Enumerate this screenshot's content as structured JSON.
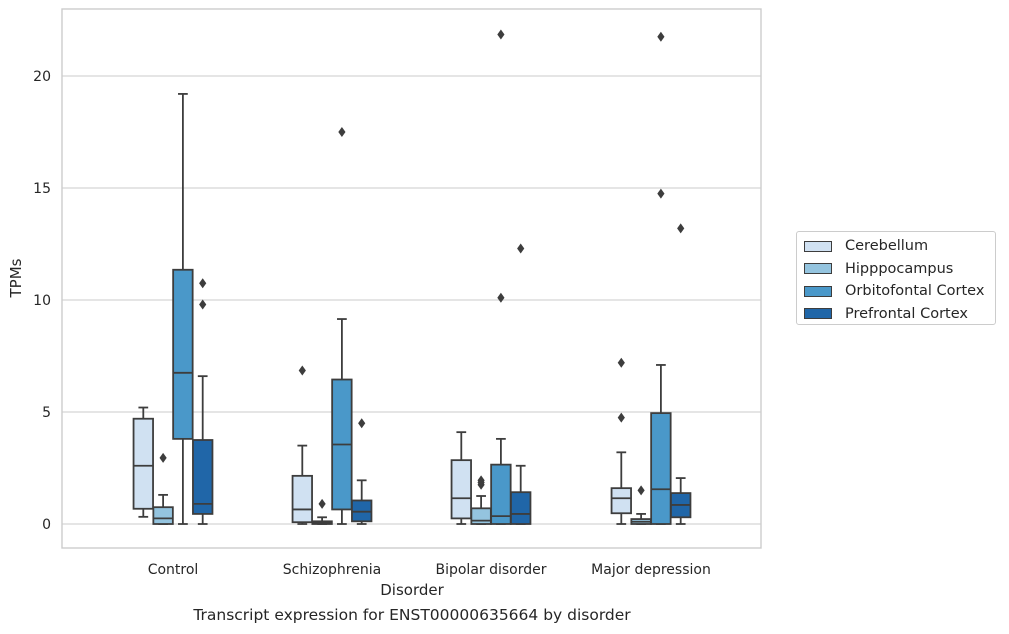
{
  "caption": "Transcript expression for ENST00000635664 by disorder",
  "chart_data": {
    "type": "box",
    "xlabel": "Disorder",
    "ylabel": "TPMs",
    "ylim": [
      -1.05,
      23.0
    ],
    "yticks": [
      0,
      5,
      10,
      15,
      20
    ],
    "grid": "horizontal",
    "legend_position": "right",
    "categories": [
      "Control",
      "Schizophrenia",
      "Bipolar disorder",
      "Major depression"
    ],
    "series": [
      {
        "name": "Cerebellum",
        "color": "#d0e1f2",
        "boxes": [
          {
            "whisker_low": 0.32,
            "q1": 0.68,
            "median": 2.6,
            "q3": 4.7,
            "whisker_high": 5.2,
            "outliers": []
          },
          {
            "whisker_low": 0.0,
            "q1": 0.08,
            "median": 0.65,
            "q3": 2.15,
            "whisker_high": 3.5,
            "outliers": [
              6.85
            ]
          },
          {
            "whisker_low": 0.0,
            "q1": 0.25,
            "median": 1.15,
            "q3": 2.85,
            "whisker_high": 4.1,
            "outliers": []
          },
          {
            "whisker_low": 0.0,
            "q1": 0.48,
            "median": 1.15,
            "q3": 1.6,
            "whisker_high": 3.2,
            "outliers": [
              4.75,
              7.2
            ]
          }
        ]
      },
      {
        "name": "Hipppocampus",
        "color": "#94c4df",
        "boxes": [
          {
            "whisker_low": 0.0,
            "q1": 0.0,
            "median": 0.25,
            "q3": 0.75,
            "whisker_high": 1.3,
            "outliers": [
              2.95
            ]
          },
          {
            "whisker_low": 0.0,
            "q1": 0.0,
            "median": 0.05,
            "q3": 0.12,
            "whisker_high": 0.3,
            "outliers": [
              0.9
            ]
          },
          {
            "whisker_low": 0.0,
            "q1": 0.0,
            "median": 0.15,
            "q3": 0.7,
            "whisker_high": 1.25,
            "outliers": [
              1.75,
              1.85,
              1.95
            ]
          },
          {
            "whisker_low": 0.0,
            "q1": 0.0,
            "median": 0.1,
            "q3": 0.22,
            "whisker_high": 0.45,
            "outliers": [
              1.5
            ]
          }
        ]
      },
      {
        "name": "Orbitofontal Cortex",
        "color": "#4a98c9",
        "boxes": [
          {
            "whisker_low": 0.0,
            "q1": 3.8,
            "median": 6.75,
            "q3": 11.35,
            "whisker_high": 19.2,
            "outliers": []
          },
          {
            "whisker_low": 0.0,
            "q1": 0.65,
            "median": 3.55,
            "q3": 6.45,
            "whisker_high": 9.15,
            "outliers": [
              17.5
            ]
          },
          {
            "whisker_low": 0.0,
            "q1": 0.0,
            "median": 0.35,
            "q3": 2.65,
            "whisker_high": 3.8,
            "outliers": [
              10.1,
              21.85
            ]
          },
          {
            "whisker_low": 0.0,
            "q1": 0.0,
            "median": 1.55,
            "q3": 4.95,
            "whisker_high": 7.1,
            "outliers": [
              14.75,
              21.75
            ]
          }
        ]
      },
      {
        "name": "Prefrontal Cortex",
        "color": "#2066a8",
        "boxes": [
          {
            "whisker_low": 0.0,
            "q1": 0.45,
            "median": 0.9,
            "q3": 3.75,
            "whisker_high": 6.6,
            "outliers": [
              9.8,
              10.75
            ]
          },
          {
            "whisker_low": 0.0,
            "q1": 0.12,
            "median": 0.55,
            "q3": 1.05,
            "whisker_high": 1.95,
            "outliers": [
              4.5
            ]
          },
          {
            "whisker_low": 0.0,
            "q1": 0.0,
            "median": 0.45,
            "q3": 1.42,
            "whisker_high": 2.6,
            "outliers": [
              12.3
            ]
          },
          {
            "whisker_low": 0.0,
            "q1": 0.3,
            "median": 0.85,
            "q3": 1.38,
            "whisker_high": 2.05,
            "outliers": [
              13.2
            ]
          }
        ]
      }
    ]
  }
}
